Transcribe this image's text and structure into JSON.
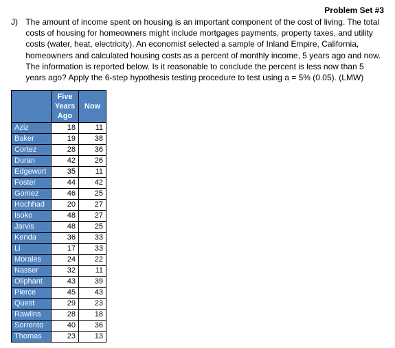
{
  "header": "Problem Set #3",
  "problem_label": "J)",
  "problem_text": "The amount of income spent on housing is an important component of the cost of living.  The total costs of housing for homeowners might include mortgages payments, property taxes, and utility costs (water, heat, electricity).  An economist selected a sample of Inland Empire, California, homeowners and calculated housing costs as a percent of monthly income, 5 years ago and now.  The information is reported below.  Is it reasonable to conclude the percent is less now than 5 years ago?  Apply the 6-step hypothesis testing procedure to test using a = 5% (0.05).  (LMW)",
  "table": {
    "col1_header": "Five Years Ago",
    "col2_header": "Now",
    "header_bg": "#4f81bd",
    "header_color": "#ffffff",
    "cell_bg": "#ffffff",
    "rows": [
      {
        "name": "Aziz",
        "a": "18",
        "b": "11"
      },
      {
        "name": "Baker",
        "a": "19",
        "b": "38"
      },
      {
        "name": "Cortez",
        "a": "28",
        "b": "36"
      },
      {
        "name": "Duran",
        "a": "42",
        "b": "26"
      },
      {
        "name": "Edgewort",
        "a": "35",
        "b": "11"
      },
      {
        "name": "Foster",
        "a": "44",
        "b": "42"
      },
      {
        "name": "Gomez",
        "a": "46",
        "b": "25"
      },
      {
        "name": "Hochhad",
        "a": "20",
        "b": "27"
      },
      {
        "name": "Isoko",
        "a": "48",
        "b": "27"
      },
      {
        "name": "Jarvis",
        "a": "48",
        "b": "25"
      },
      {
        "name": "Kenda",
        "a": "36",
        "b": "33"
      },
      {
        "name": "Li",
        "a": "17",
        "b": "33"
      },
      {
        "name": "Morales",
        "a": "24",
        "b": "22"
      },
      {
        "name": "Nasser",
        "a": "32",
        "b": "11"
      },
      {
        "name": "Oliphant",
        "a": "43",
        "b": "39"
      },
      {
        "name": "Pierce",
        "a": "45",
        "b": "43"
      },
      {
        "name": "Quest",
        "a": "29",
        "b": "23"
      },
      {
        "name": "Rawlins",
        "a": "28",
        "b": "18"
      },
      {
        "name": "Sorrento",
        "a": "40",
        "b": "36"
      },
      {
        "name": "Thomas",
        "a": "23",
        "b": "13"
      }
    ]
  }
}
